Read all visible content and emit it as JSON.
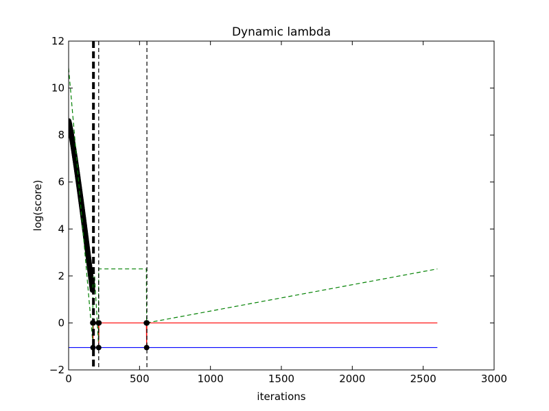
{
  "chart_data": {
    "type": "line",
    "title": "Dynamic lambda",
    "xlabel": "iterations",
    "ylabel": "log(score)",
    "xlim": [
      0,
      3000
    ],
    "ylim": [
      -2,
      12
    ],
    "xticks": [
      0,
      500,
      1000,
      1500,
      2000,
      2500,
      3000
    ],
    "yticks": [
      -2,
      0,
      2,
      4,
      6,
      8,
      10,
      12
    ],
    "xtick_labels": [
      "0",
      "500",
      "1000",
      "1500",
      "2000",
      "2500",
      "3000"
    ],
    "ytick_labels": [
      "−2",
      "0",
      "2",
      "4",
      "6",
      "8",
      "10",
      "12"
    ],
    "grid": false,
    "series": [
      {
        "style": "solid",
        "color": "#0000ff",
        "x": [
          0,
          2600
        ],
        "y": [
          -1.05,
          -1.05
        ]
      },
      {
        "style": "solid",
        "color": "#ff0000",
        "x": [
          170,
          172,
          174,
          210,
          212,
          214,
          548,
          550,
          552,
          2600
        ],
        "y": [
          0,
          -1.05,
          0,
          0,
          -1.05,
          0,
          0,
          -1.05,
          0,
          0
        ]
      },
      {
        "style": "dashed",
        "color": "#008000",
        "x": [
          0,
          170,
          172,
          180,
          210,
          212,
          548,
          550,
          2600
        ],
        "y": [
          10.85,
          -0.8,
          2.3,
          2.3,
          -0.8,
          2.3,
          2.3,
          0.0,
          2.3
        ]
      },
      {
        "style": "markers",
        "color": "#000000",
        "x": [
          170,
          172,
          174,
          210,
          212,
          214,
          548,
          550,
          552
        ],
        "y": [
          0,
          -1.05,
          0,
          0,
          -1.05,
          0,
          0,
          -1.05,
          0
        ]
      }
    ],
    "descent_curve": {
      "style": "markers",
      "color": "#000000",
      "x_start": 0,
      "x_end": 168,
      "y_start": 8.6,
      "y_end": 1.4,
      "n_points": 170
    },
    "vlines": [
      {
        "x": 175,
        "style": "thick-dashed",
        "color": "#000000"
      },
      {
        "x": 212,
        "style": "dashed",
        "color": "#000000"
      },
      {
        "x": 552,
        "style": "dashed",
        "color": "#000000"
      }
    ]
  }
}
